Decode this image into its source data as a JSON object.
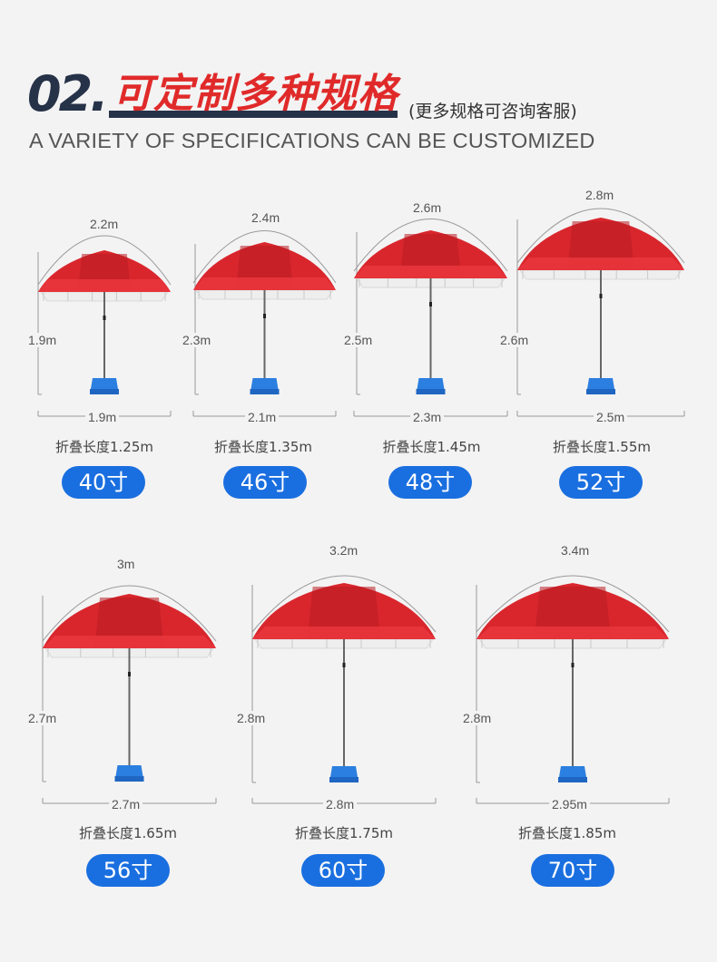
{
  "header": {
    "number": "02.",
    "title": "可定制多种规格",
    "subtitle": "(更多规格可咨询客服)",
    "english": "A VARIETY OF SPECIFICATIONS CAN BE CUSTOMIZED"
  },
  "products": [
    {
      "diameter": "2.2m",
      "height": "1.9m",
      "width": "1.9m",
      "folded": "折叠长度1.25m",
      "size": "40寸"
    },
    {
      "diameter": "2.4m",
      "height": "2.3m",
      "width": "2.1m",
      "folded": "折叠长度1.35m",
      "size": "46寸"
    },
    {
      "diameter": "2.6m",
      "height": "2.5m",
      "width": "2.3m",
      "folded": "折叠长度1.45m",
      "size": "48寸"
    },
    {
      "diameter": "2.8m",
      "height": "2.6m",
      "width": "2.5m",
      "folded": "折叠长度1.55m",
      "size": "52寸"
    },
    {
      "diameter": "3m",
      "height": "2.7m",
      "width": "2.7m",
      "folded": "折叠长度1.65m",
      "size": "56寸"
    },
    {
      "diameter": "3.2m",
      "height": "2.8m",
      "width": "2.8m",
      "folded": "折叠长度1.75m",
      "size": "60寸"
    },
    {
      "diameter": "3.4m",
      "height": "2.8m",
      "width": "2.95m",
      "folded": "折叠长度1.85m",
      "size": "70寸"
    }
  ],
  "colors": {
    "canopy": "#d9262d",
    "canopy_dark": "#b81c22",
    "base": "#2b7fe0",
    "button": "#1a6fe0",
    "title_red": "#e02a2a",
    "navy": "#263248"
  }
}
